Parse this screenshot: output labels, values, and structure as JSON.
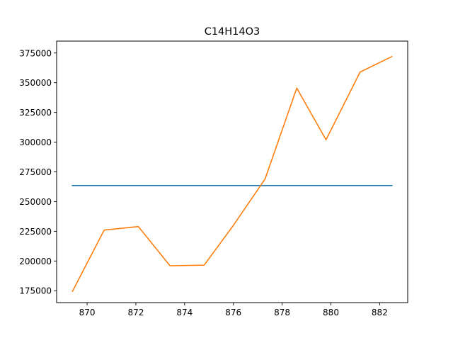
{
  "chart_data": {
    "type": "line",
    "title": "C14H14O3",
    "xlabel": "",
    "ylabel": "",
    "xlim": [
      868.75,
      883.15
    ],
    "ylim": [
      165000,
      385000
    ],
    "x_ticks": [
      870,
      872,
      874,
      876,
      878,
      880,
      882
    ],
    "x_tick_labels": [
      "870",
      "872",
      "874",
      "876",
      "878",
      "880",
      "882"
    ],
    "y_ticks": [
      175000,
      200000,
      225000,
      250000,
      275000,
      300000,
      325000,
      350000,
      375000
    ],
    "y_tick_labels": [
      "175000",
      "200000",
      "225000",
      "250000",
      "275000",
      "300000",
      "325000",
      "350000",
      "375000"
    ],
    "grid": false,
    "legend": "none",
    "series": [
      {
        "color": "#1f77b4",
        "x": [
          869.4,
          882.5
        ],
        "y": [
          263500,
          263500
        ]
      },
      {
        "color": "#ff7f0e",
        "x": [
          869.4,
          870.7,
          872.1,
          873.4,
          874.8,
          876.0,
          877.3,
          878.6,
          879.8,
          881.2,
          882.5
        ],
        "y": [
          174500,
          226000,
          229000,
          196000,
          196500,
          230000,
          269000,
          345500,
          302000,
          359000,
          372000
        ]
      }
    ]
  }
}
